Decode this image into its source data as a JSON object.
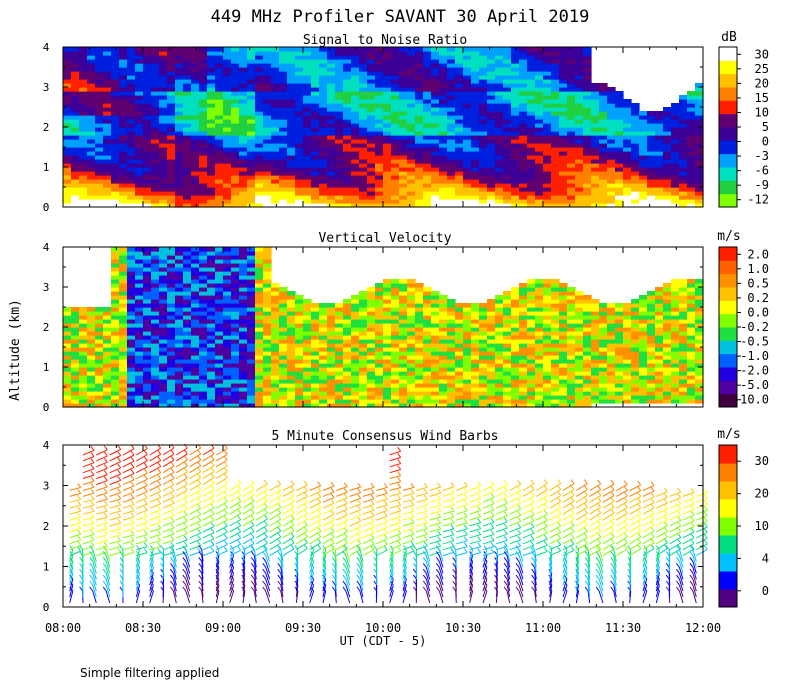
{
  "figure": {
    "title": "449 MHz Profiler SAVANT 30 April 2019",
    "ylabel": "Altitude (km)",
    "xlabel": "UT  (CDT - 5)",
    "footnote": "Simple filtering applied",
    "x_ticks": [
      "08:00",
      "08:30",
      "09:00",
      "09:30",
      "10:00",
      "10:30",
      "11:00",
      "11:30",
      "12:00"
    ]
  },
  "chart_data": [
    {
      "type": "heatmap",
      "title": "Signal to Noise Ratio",
      "units": "dB",
      "xlim_hours_ut": [
        8,
        12
      ],
      "ylim_km": [
        0,
        4
      ],
      "y_ticks": [
        "0",
        "1",
        "2",
        "3",
        "4"
      ],
      "colorbar_labels": [
        "-12",
        "-9",
        "-6",
        "-3",
        "0",
        "5",
        "10",
        "15",
        "20",
        "25",
        "30"
      ],
      "colorbar_colors": [
        "#80ff00",
        "#20d040",
        "#00e0c0",
        "#00a0ff",
        "#0020e0",
        "#3c0098",
        "#600070",
        "#ff2000",
        "#ff8000",
        "#ffc000",
        "#ffff00",
        "#ffffff"
      ]
    },
    {
      "type": "heatmap",
      "title": "Vertical Velocity",
      "units": "m/s",
      "xlim_hours_ut": [
        8,
        12
      ],
      "ylim_km": [
        0,
        4
      ],
      "y_ticks": [
        "0",
        "1",
        "2",
        "3",
        "4"
      ],
      "colorbar_labels": [
        "-10.0",
        "-5.0",
        "-2.0",
        "-1.0",
        "-0.5",
        "-0.2",
        "0.0",
        "0.2",
        "0.5",
        "1.0",
        "2.0"
      ],
      "colorbar_colors": [
        "#400040",
        "#5000a0",
        "#2000e0",
        "#0060ff",
        "#00c0e0",
        "#20e040",
        "#80ff00",
        "#ffff00",
        "#ffc000",
        "#ff9000",
        "#ff6000",
        "#ff2000"
      ]
    },
    {
      "type": "wind-barbs",
      "title": "5 Minute Consensus Wind Barbs",
      "units": "m/s",
      "xlim_hours_ut": [
        8,
        12
      ],
      "ylim_km": [
        0,
        4
      ],
      "y_ticks": [
        "0",
        "1",
        "2",
        "3",
        "4"
      ],
      "colorbar_labels": [
        "0",
        "4",
        "10",
        "20",
        "30"
      ],
      "colorbar_colors": [
        "#500080",
        "#0000ff",
        "#00c0ff",
        "#00e080",
        "#80ff00",
        "#ffff00",
        "#ffc000",
        "#ff8000",
        "#ff2000"
      ]
    }
  ]
}
